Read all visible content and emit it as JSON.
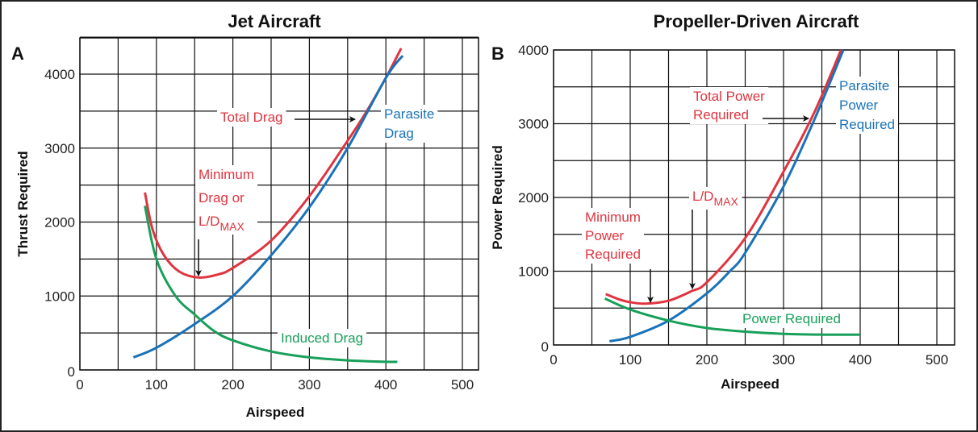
{
  "colors": {
    "total": "#e0343f",
    "parasite": "#1a72b8",
    "induced": "#18a05a",
    "grid": "#111111"
  },
  "chart_data": [
    {
      "type": "line",
      "panel_letter": "A",
      "title": "Jet Aircraft",
      "xlabel": "Airspeed",
      "ylabel": "Thrust Required",
      "xlim": [
        0,
        520
      ],
      "ylim": [
        0,
        4490
      ],
      "xticks": [
        0,
        100,
        200,
        300,
        400,
        500
      ],
      "yticks": [
        0,
        1000,
        2000,
        3000,
        4000
      ],
      "grid": true,
      "series": [
        {
          "key": "total",
          "x": [
            85,
            95,
            110,
            130,
            155,
            180,
            200,
            250,
            300,
            350,
            375,
            400,
            420
          ],
          "y": [
            2400,
            1900,
            1550,
            1330,
            1250,
            1290,
            1380,
            1750,
            2350,
            3100,
            3500,
            3950,
            4350
          ]
        },
        {
          "key": "parasite",
          "x": [
            70,
            100,
            150,
            200,
            250,
            300,
            350,
            400,
            422
          ],
          "y": [
            170,
            300,
            620,
            1000,
            1550,
            2200,
            3000,
            3950,
            4250
          ]
        },
        {
          "key": "induced",
          "x": [
            85,
            100,
            125,
            150,
            175,
            200,
            250,
            300,
            350,
            400,
            415
          ],
          "y": [
            2220,
            1500,
            1000,
            750,
            530,
            400,
            250,
            170,
            130,
            110,
            110
          ]
        }
      ],
      "annotations": [
        {
          "lines": [
            "Total Drag"
          ],
          "color": "total"
        },
        {
          "lines": [
            "Parasite",
            "Drag"
          ],
          "color": "parasite"
        },
        {
          "lines": [
            "Minimum",
            "Drag or",
            "L/D"
          ],
          "sub": "MAX",
          "color": "total"
        },
        {
          "lines": [
            "Induced Drag"
          ],
          "color": "induced"
        }
      ]
    },
    {
      "type": "line",
      "panel_letter": "B",
      "title": "Propeller-Driven Aircraft",
      "xlabel": "Airspeed",
      "ylabel": "Power Required",
      "xlim": [
        0,
        523
      ],
      "ylim": [
        0,
        4000
      ],
      "xticks": [
        0,
        100,
        200,
        300,
        400,
        500
      ],
      "yticks": [
        0,
        1000,
        2000,
        3000,
        4000
      ],
      "grid": true,
      "series": [
        {
          "key": "total",
          "x": [
            68,
            85,
            100,
            120,
            150,
            180,
            200,
            250,
            300,
            340,
            375
          ],
          "y": [
            690,
            620,
            580,
            560,
            600,
            730,
            850,
            1450,
            2350,
            3150,
            4000
          ]
        },
        {
          "key": "parasite",
          "x": [
            73,
            100,
            150,
            200,
            230,
            250,
            300,
            340,
            378
          ],
          "y": [
            50,
            110,
            330,
            700,
            1000,
            1250,
            2150,
            3050,
            4000
          ]
        },
        {
          "key": "induced",
          "x": [
            67,
            100,
            150,
            200,
            250,
            300,
            350,
            400
          ],
          "y": [
            630,
            480,
            330,
            230,
            180,
            150,
            140,
            140
          ]
        }
      ],
      "annotations": [
        {
          "lines": [
            "Total Power",
            "Required"
          ],
          "color": "total"
        },
        {
          "lines": [
            "Parasite",
            "Power",
            "Required"
          ],
          "color": "parasite"
        },
        {
          "lines": [
            "L/D"
          ],
          "sub": "MAX",
          "color": "total"
        },
        {
          "lines": [
            "Minimum",
            "Power",
            "Required"
          ],
          "color": "total"
        },
        {
          "lines": [
            "Power Required"
          ],
          "color": "induced"
        }
      ]
    }
  ]
}
